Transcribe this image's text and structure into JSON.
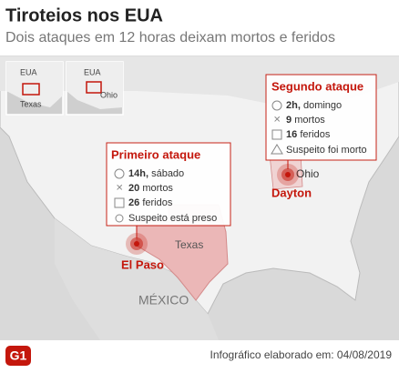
{
  "header": {
    "title": "Tiroteios nos EUA",
    "subtitle": "Dois ataques em 12 horas deixam mortos e feridos"
  },
  "insets": [
    {
      "country": "EUA",
      "state": "Texas"
    },
    {
      "country": "EUA",
      "state": "Ohio"
    }
  ],
  "map_labels": {
    "texas": "Texas",
    "ohio": "Ohio",
    "mexico": "MÉXICO"
  },
  "attacks": [
    {
      "city": "El Paso",
      "title": "Primeiro ataque",
      "time_hour": "14h,",
      "time_day": "sábado",
      "deaths": 20,
      "deaths_label": "mortos",
      "injured": 26,
      "injured_label": "feridos",
      "suspect": "Suspeito está preso"
    },
    {
      "city": "Dayton",
      "title": "Segundo ataque",
      "time_hour": "2h,",
      "time_day": "domingo",
      "deaths": 9,
      "deaths_label": "mortos",
      "injured": 16,
      "injured_label": "feridos",
      "suspect": "Suspeito foi morto"
    }
  ],
  "footer": {
    "logo": "G1",
    "credit": "Infográfico elaborado em: 04/08/2019"
  }
}
